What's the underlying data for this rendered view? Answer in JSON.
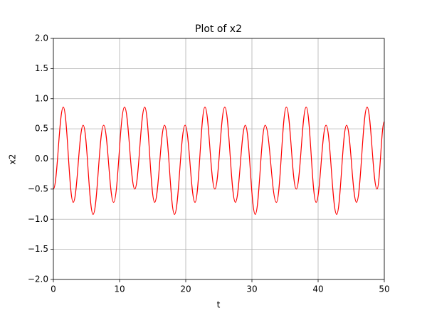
{
  "chart_data": {
    "type": "line",
    "title": "Plot of x2",
    "x_label": "t",
    "y_label": "x2",
    "x": [
      0,
      1.5,
      3.0,
      4.5,
      6.0,
      7.6,
      9.1,
      10.75,
      12.3,
      13.8,
      15.3,
      16.8,
      18.3,
      19.9,
      21.4,
      22.9,
      24.4,
      25.9,
      27.5,
      29.0,
      30.5,
      32.0,
      33.7,
      35.2,
      36.7,
      38.2,
      39.7,
      41.2,
      42.8,
      44.3,
      45.8,
      47.4,
      48.9,
      50
    ],
    "series": [
      {
        "name": "x2",
        "color": "#ff0000",
        "values": [
          -0.5,
          0.86,
          -0.72,
          0.56,
          -0.92,
          0.56,
          -0.72,
          0.86,
          -0.5,
          0.86,
          -0.72,
          0.56,
          -0.92,
          0.56,
          -0.72,
          0.86,
          -0.5,
          0.86,
          -0.72,
          0.56,
          -0.92,
          0.56,
          -0.72,
          0.86,
          -0.5,
          0.86,
          -0.72,
          0.56,
          -0.92,
          0.56,
          -0.72,
          0.86,
          -0.5,
          0.62
        ]
      }
    ],
    "xlim": [
      0,
      50
    ],
    "xticks": [
      0,
      10,
      20,
      30,
      40,
      50
    ],
    "ylim": [
      -2,
      2
    ],
    "yticks": [
      {
        "value": -2,
        "label": "−2.0"
      },
      {
        "value": -1.5,
        "label": "−1.5"
      },
      {
        "value": -1,
        "label": "−1.0"
      },
      {
        "value": -0.5,
        "label": "−0.5"
      },
      {
        "value": 0,
        "label": "0.0"
      },
      {
        "value": 0.5,
        "label": "0.5"
      },
      {
        "value": 1,
        "label": "1.0"
      },
      {
        "value": 1.5,
        "label": "1.5"
      },
      {
        "value": 2,
        "label": "2.0"
      }
    ],
    "grid": true
  }
}
